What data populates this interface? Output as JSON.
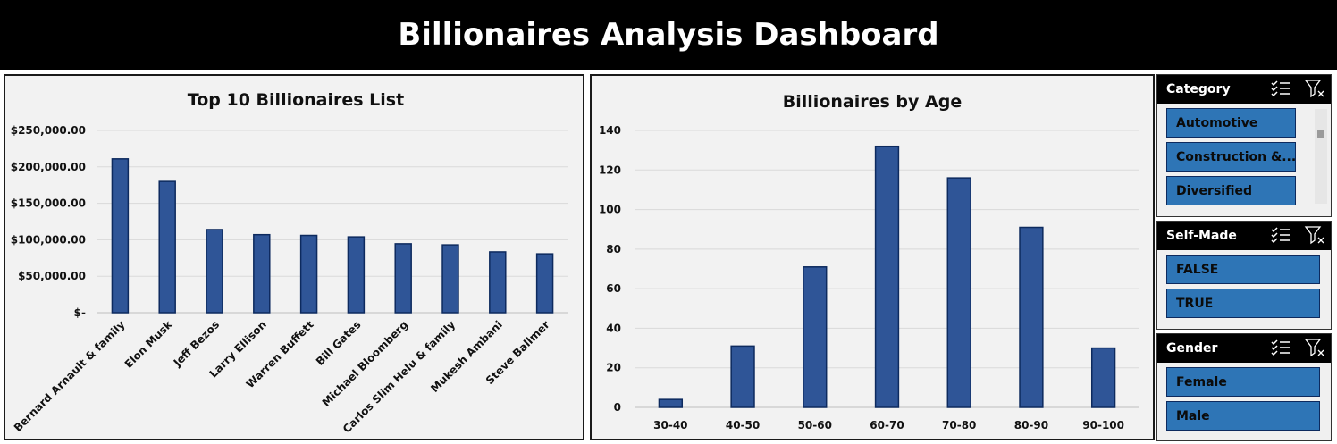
{
  "header": {
    "title": "Billionaires Analysis Dashboard"
  },
  "colors": {
    "bar": "#2f5597",
    "bar_border": "#0d2a5e",
    "slicer_item": "#2e75b6",
    "header_bg": "#000000"
  },
  "chart_data": [
    {
      "type": "bar",
      "title": "Top 10 Billionaires List",
      "categories": [
        "Bernard Arnault & family",
        "Elon Musk",
        "Jeff Bezos",
        "Larry Ellison",
        "Warren Buffett",
        "Bill Gates",
        "Michael Bloomberg",
        "Carlos Slim Helu & family",
        "Mukesh Ambani",
        "Steve Ballmer"
      ],
      "values": [
        211000,
        180000,
        114000,
        107000,
        106000,
        104000,
        94500,
        93000,
        83400,
        80700
      ],
      "ylim": [
        0,
        250000
      ],
      "yticks": [
        0,
        50000,
        100000,
        150000,
        200000,
        250000
      ],
      "ytick_labels": [
        "$-",
        "$50,000.00",
        "$100,000.00",
        "$150,000.00",
        "$200,000.00",
        "$250,000.00"
      ],
      "grid": true,
      "legend": "none"
    },
    {
      "type": "bar",
      "title": "Billionaires by Age",
      "categories": [
        "30-40",
        "40-50",
        "50-60",
        "60-70",
        "70-80",
        "80-90",
        "90-100"
      ],
      "values": [
        4,
        31,
        71,
        132,
        116,
        91,
        30
      ],
      "ylim": [
        0,
        140
      ],
      "yticks": [
        0,
        20,
        40,
        60,
        80,
        100,
        120,
        140
      ],
      "ytick_labels": [
        "0",
        "20",
        "40",
        "60",
        "80",
        "100",
        "120",
        "140"
      ],
      "grid": true,
      "legend": "none"
    }
  ],
  "slicers": {
    "category": {
      "title": "Category",
      "items": [
        "Automotive",
        "Construction &...",
        "Diversified"
      ],
      "icons": [
        "multi-select-icon",
        "clear-filter-icon"
      ]
    },
    "self_made": {
      "title": "Self-Made",
      "items": [
        "FALSE",
        "TRUE"
      ],
      "icons": [
        "multi-select-icon",
        "clear-filter-icon"
      ]
    },
    "gender": {
      "title": "Gender",
      "items": [
        "Female",
        "Male"
      ],
      "icons": [
        "multi-select-icon",
        "clear-filter-icon"
      ]
    }
  }
}
